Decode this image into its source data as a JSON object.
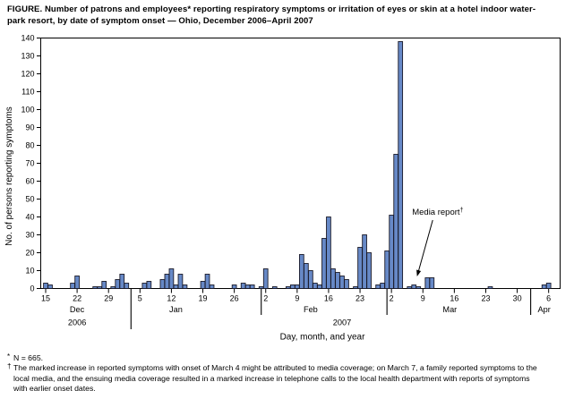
{
  "title": {
    "line1": "FIGURE. Number of patrons and employees* reporting respiratory symptoms or irritation of eyes or skin at a hotel indoor water-",
    "line2": "park resort, by date of symptom onset — Ohio, December 2006–April 2007"
  },
  "footnotes": {
    "fn1_marker": "*",
    "fn1_text": "N = 665.",
    "fn2_marker": "†",
    "fn2_line1": "The marked increase in reported symptoms with onset of March 4 might be attributed to media coverage; on March 7, a family reported symptoms to the",
    "fn2_line2": "local media, and the ensuing media coverage resulted in a marked increase in telephone calls to the local health department with reports of symptoms",
    "fn2_line3": "with earlier onset dates."
  },
  "chart_data": {
    "type": "bar",
    "title": "",
    "xlabel": "Day, month, and year",
    "ylabel": "No. of persons reporting symptoms",
    "ylim": [
      0,
      140
    ],
    "ytick_step": 10,
    "yticks": [
      0,
      10,
      20,
      30,
      40,
      50,
      60,
      70,
      80,
      90,
      100,
      110,
      120,
      130,
      140
    ],
    "grid": false,
    "bar_color": "#6789C7",
    "bar_border": "#1A1A28",
    "axis_color": "#000000",
    "xticks": [
      {
        "label": "15",
        "date": "2006-12-15"
      },
      {
        "label": "22",
        "date": "2006-12-22"
      },
      {
        "label": "29",
        "date": "2006-12-29"
      },
      {
        "label": "5",
        "date": "2007-01-05"
      },
      {
        "label": "12",
        "date": "2007-01-12"
      },
      {
        "label": "19",
        "date": "2007-01-19"
      },
      {
        "label": "26",
        "date": "2007-01-26"
      },
      {
        "label": "2",
        "date": "2007-02-02"
      },
      {
        "label": "9",
        "date": "2007-02-09"
      },
      {
        "label": "16",
        "date": "2007-02-16"
      },
      {
        "label": "23",
        "date": "2007-02-23"
      },
      {
        "label": "2",
        "date": "2007-03-02"
      },
      {
        "label": "9",
        "date": "2007-03-09"
      },
      {
        "label": "16",
        "date": "2007-03-16"
      },
      {
        "label": "23",
        "date": "2007-03-23"
      },
      {
        "label": "30",
        "date": "2007-03-30"
      },
      {
        "label": "6",
        "date": "2007-04-06"
      }
    ],
    "months": [
      {
        "label": "Dec",
        "center_date": "2006-12-22"
      },
      {
        "label": "Jan",
        "center_date": "2007-01-13"
      },
      {
        "label": "Feb",
        "center_date": "2007-02-12"
      },
      {
        "label": "Mar",
        "center_date": "2007-03-15"
      },
      {
        "label": "Apr",
        "center_date": "2007-04-05"
      }
    ],
    "years": [
      {
        "label": "2006",
        "center_date": "2006-12-22"
      },
      {
        "label": "2007",
        "center_date": "2007-02-19"
      }
    ],
    "month_dividers": [
      {
        "date": "2007-01-03",
        "deep": true
      },
      {
        "date": "2007-02-01",
        "deep": false
      },
      {
        "date": "2007-03-01",
        "deep": false
      },
      {
        "date": "2007-04-02",
        "deep": false
      }
    ],
    "annotation": {
      "text": "Media report",
      "marker": "†",
      "target_date": "2007-03-07"
    },
    "data": [
      [
        "2006-12-15",
        3
      ],
      [
        "2006-12-16",
        2
      ],
      [
        "2006-12-21",
        3
      ],
      [
        "2006-12-22",
        7
      ],
      [
        "2006-12-26",
        1
      ],
      [
        "2006-12-27",
        1
      ],
      [
        "2006-12-28",
        4
      ],
      [
        "2006-12-30",
        1
      ],
      [
        "2006-12-31",
        5
      ],
      [
        "2007-01-01",
        8
      ],
      [
        "2007-01-02",
        3
      ],
      [
        "2007-01-06",
        3
      ],
      [
        "2007-01-07",
        4
      ],
      [
        "2007-01-10",
        5
      ],
      [
        "2007-01-11",
        8
      ],
      [
        "2007-01-12",
        11
      ],
      [
        "2007-01-13",
        2
      ],
      [
        "2007-01-14",
        8
      ],
      [
        "2007-01-15",
        2
      ],
      [
        "2007-01-19",
        4
      ],
      [
        "2007-01-20",
        8
      ],
      [
        "2007-01-21",
        2
      ],
      [
        "2007-01-26",
        2
      ],
      [
        "2007-01-28",
        3
      ],
      [
        "2007-01-29",
        2
      ],
      [
        "2007-01-30",
        2
      ],
      [
        "2007-02-01",
        1
      ],
      [
        "2007-02-02",
        11
      ],
      [
        "2007-02-04",
        1
      ],
      [
        "2007-02-07",
        1
      ],
      [
        "2007-02-08",
        2
      ],
      [
        "2007-02-09",
        2
      ],
      [
        "2007-02-10",
        19
      ],
      [
        "2007-02-11",
        14
      ],
      [
        "2007-02-12",
        10
      ],
      [
        "2007-02-13",
        3
      ],
      [
        "2007-02-14",
        2
      ],
      [
        "2007-02-15",
        28
      ],
      [
        "2007-02-16",
        40
      ],
      [
        "2007-02-17",
        11
      ],
      [
        "2007-02-18",
        9
      ],
      [
        "2007-02-19",
        7
      ],
      [
        "2007-02-20",
        5
      ],
      [
        "2007-02-22",
        1
      ],
      [
        "2007-02-23",
        23
      ],
      [
        "2007-02-24",
        30
      ],
      [
        "2007-02-25",
        20
      ],
      [
        "2007-02-27",
        2
      ],
      [
        "2007-02-28",
        3
      ],
      [
        "2007-03-01",
        21
      ],
      [
        "2007-03-02",
        41
      ],
      [
        "2007-03-03",
        75
      ],
      [
        "2007-03-04",
        138
      ],
      [
        "2007-03-06",
        1
      ],
      [
        "2007-03-07",
        2
      ],
      [
        "2007-03-08",
        1
      ],
      [
        "2007-03-10",
        6
      ],
      [
        "2007-03-11",
        6
      ],
      [
        "2007-03-24",
        1
      ],
      [
        "2007-04-05",
        2
      ],
      [
        "2007-04-06",
        3
      ]
    ]
  }
}
